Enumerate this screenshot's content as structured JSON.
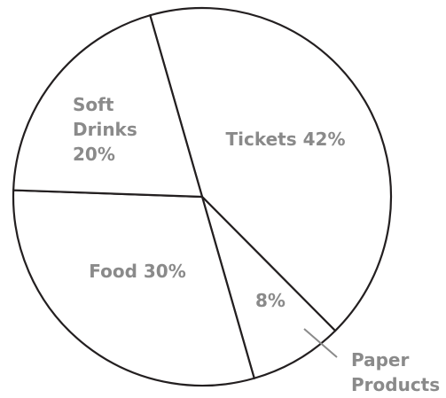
{
  "chart_data": {
    "type": "pie",
    "title": "",
    "slices": [
      {
        "category": "Tickets",
        "value": 42,
        "label_lines": [
          "Tickets 42%"
        ]
      },
      {
        "category": "Paper Products",
        "value": 8,
        "label_lines": [
          "8%"
        ],
        "callout_lines": [
          "Paper",
          "Products"
        ]
      },
      {
        "category": "Food",
        "value": 30,
        "label_lines": [
          "Food 30%"
        ]
      },
      {
        "category": "Soft Drinks",
        "value": 20,
        "label_lines": [
          "Soft",
          "Drinks",
          "20%"
        ]
      }
    ],
    "unit": "%",
    "slice_fill": "#ffffff",
    "outline_color": "#231f20",
    "label_color": "#8a8a8a",
    "legend": "none"
  }
}
